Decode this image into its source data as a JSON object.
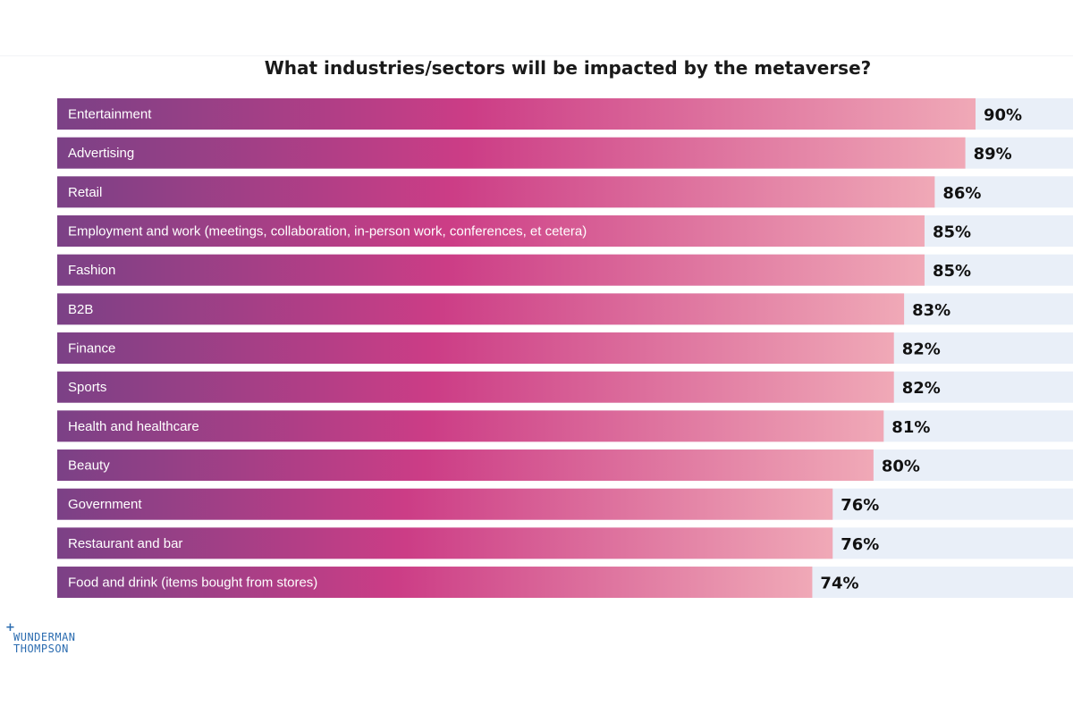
{
  "colors": {
    "gradient_start": "#7b4186",
    "gradient_mid": "#cc3d86",
    "gradient_end": "#f0a9b7",
    "track": "#e9eff8",
    "logo": "#2b6cb0"
  },
  "logo": {
    "plus": "+",
    "line1": "WUNDERMAN",
    "line2": "THOMPSON"
  },
  "chart_data": {
    "type": "bar",
    "orientation": "horizontal",
    "title": "What industries/sectors will be impacted by the metaverse?",
    "categories": [
      "Entertainment",
      "Advertising",
      "Retail",
      "Employment and work (meetings, collaboration, in-person work, conferences, et cetera)",
      "Fashion",
      "B2B",
      "Finance",
      "Sports",
      "Health and healthcare",
      "Beauty",
      "Government",
      "Restaurant and bar",
      "Food and drink (items bought from stores)"
    ],
    "values": [
      90,
      89,
      86,
      85,
      85,
      83,
      82,
      82,
      81,
      80,
      76,
      76,
      74
    ],
    "value_labels": [
      "90%",
      "89%",
      "86%",
      "85%",
      "85%",
      "83%",
      "82%",
      "82%",
      "81%",
      "80%",
      "76%",
      "76%",
      "74%"
    ],
    "unit": "%",
    "xlim": [
      0,
      100
    ],
    "grid": false,
    "legend": "none"
  }
}
